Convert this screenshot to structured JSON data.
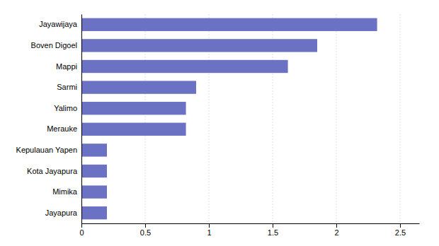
{
  "chart_data": {
    "type": "bar",
    "orientation": "horizontal",
    "categories": [
      "Jayapura",
      "Mimika",
      "Kota Jayapura",
      "Kepulauan Yapen",
      "Merauke",
      "Yalimo",
      "Sarmi",
      "Mappi",
      "Boven Digoel",
      "Jayawijaya"
    ],
    "values": [
      0.2,
      0.2,
      0.2,
      0.2,
      0.82,
      0.82,
      0.9,
      1.62,
      1.85,
      2.32
    ],
    "color": "#6b72c3",
    "xlim": [
      0,
      2.65
    ],
    "xticks": [
      0,
      0.5,
      1,
      1.5,
      2,
      2.5
    ],
    "grid": true
  }
}
